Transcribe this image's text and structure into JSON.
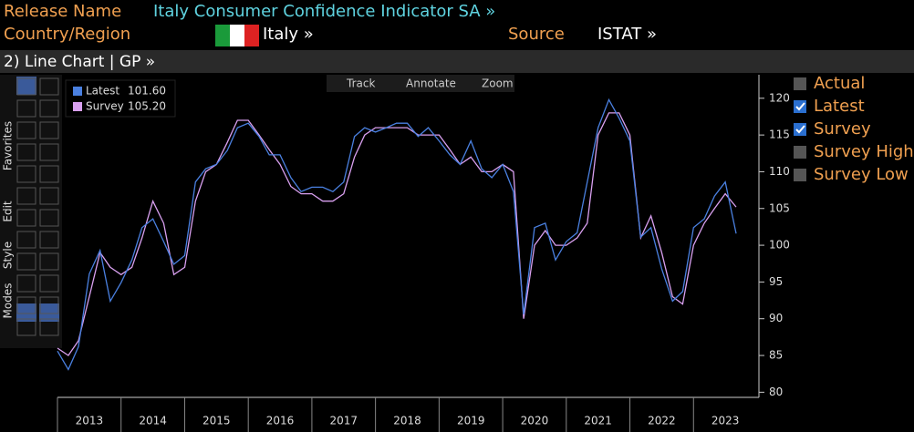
{
  "header": {
    "release_label": "Release Name",
    "release_value": "Italy Consumer Confidence Indicator SA »",
    "country_label": "Country/Region",
    "country_value": "Italy »",
    "source_label": "Source",
    "source_value": "ISTAT »",
    "panel_title": "2) Line Chart | GP »"
  },
  "toolbar": [
    "Track",
    "Annotate",
    "Zoom"
  ],
  "side_tabs": [
    "Favorites",
    "Edit",
    "Style",
    "Modes"
  ],
  "checkboxes": [
    {
      "label": "Actual",
      "checked": false
    },
    {
      "label": "Latest",
      "checked": true
    },
    {
      "label": "Survey",
      "checked": true
    },
    {
      "label": "Survey High",
      "checked": false
    },
    {
      "label": "Survey Low",
      "checked": false
    }
  ],
  "chart_data": {
    "type": "line",
    "x": [
      2013.0,
      2013.17,
      2013.33,
      2013.5,
      2013.67,
      2013.83,
      2014.0,
      2014.17,
      2014.33,
      2014.5,
      2014.67,
      2014.83,
      2015.0,
      2015.17,
      2015.33,
      2015.5,
      2015.67,
      2015.83,
      2016.0,
      2016.17,
      2016.33,
      2016.5,
      2016.67,
      2016.83,
      2017.0,
      2017.17,
      2017.33,
      2017.5,
      2017.67,
      2017.83,
      2018.0,
      2018.17,
      2018.33,
      2018.5,
      2018.67,
      2018.83,
      2019.0,
      2019.17,
      2019.33,
      2019.5,
      2019.67,
      2019.83,
      2020.0,
      2020.17,
      2020.33,
      2020.5,
      2020.67,
      2020.83,
      2021.0,
      2021.17,
      2021.33,
      2021.5,
      2021.67,
      2021.83,
      2022.0,
      2022.17,
      2022.33,
      2022.5,
      2022.67,
      2022.83,
      2023.0,
      2023.17,
      2023.33,
      2023.5,
      2023.67
    ],
    "series": [
      {
        "name": "Latest",
        "color": "#4a80e0",
        "last_label": "101.60",
        "values": [
          85.6,
          83.1,
          86.2,
          96.1,
          99.3,
          92.4,
          94.9,
          98,
          102.4,
          103.6,
          100.5,
          97.4,
          98.6,
          108.6,
          110.4,
          111,
          112.9,
          116,
          116.6,
          114.8,
          112.3,
          112.3,
          109.2,
          107.3,
          107.9,
          107.9,
          107.3,
          108.6,
          114.8,
          116,
          115.4,
          116,
          116.6,
          116.6,
          114.8,
          116,
          114.2,
          112.3,
          111,
          114.2,
          110.4,
          109.2,
          111,
          107.3,
          90.6,
          102.4,
          103,
          98,
          100.5,
          101.7,
          108.6,
          116,
          119.8,
          117.3,
          114.2,
          101.1,
          102.4,
          96.8,
          92.4,
          93.7,
          102.4,
          103.6,
          106.7,
          108.6,
          101.6
        ]
      },
      {
        "name": "Survey",
        "color": "#d9a0f0",
        "last_label": "105.20",
        "values": [
          86,
          85,
          87,
          93,
          99,
          97,
          96,
          97,
          101,
          106,
          103,
          96,
          97,
          106,
          110,
          111,
          114,
          117,
          117,
          115,
          113,
          111,
          108,
          107,
          107,
          106,
          106,
          107,
          112,
          115,
          116,
          116,
          116,
          116,
          115,
          115,
          115,
          113,
          111,
          112,
          110,
          110,
          111,
          110,
          90,
          100,
          102,
          100,
          100,
          101,
          103,
          115,
          118,
          118,
          115,
          101,
          104,
          99,
          93,
          92,
          100,
          103,
          105,
          107,
          105.2
        ]
      }
    ],
    "xlim": [
      2013,
      2024
    ],
    "xticks": [
      2013,
      2014,
      2015,
      2016,
      2017,
      2018,
      2019,
      2020,
      2021,
      2022,
      2023
    ],
    "ylim": [
      79.3,
      123.2
    ],
    "yticks": [
      80,
      85,
      90,
      95,
      100,
      105,
      110,
      115,
      120
    ],
    "grid": false
  }
}
